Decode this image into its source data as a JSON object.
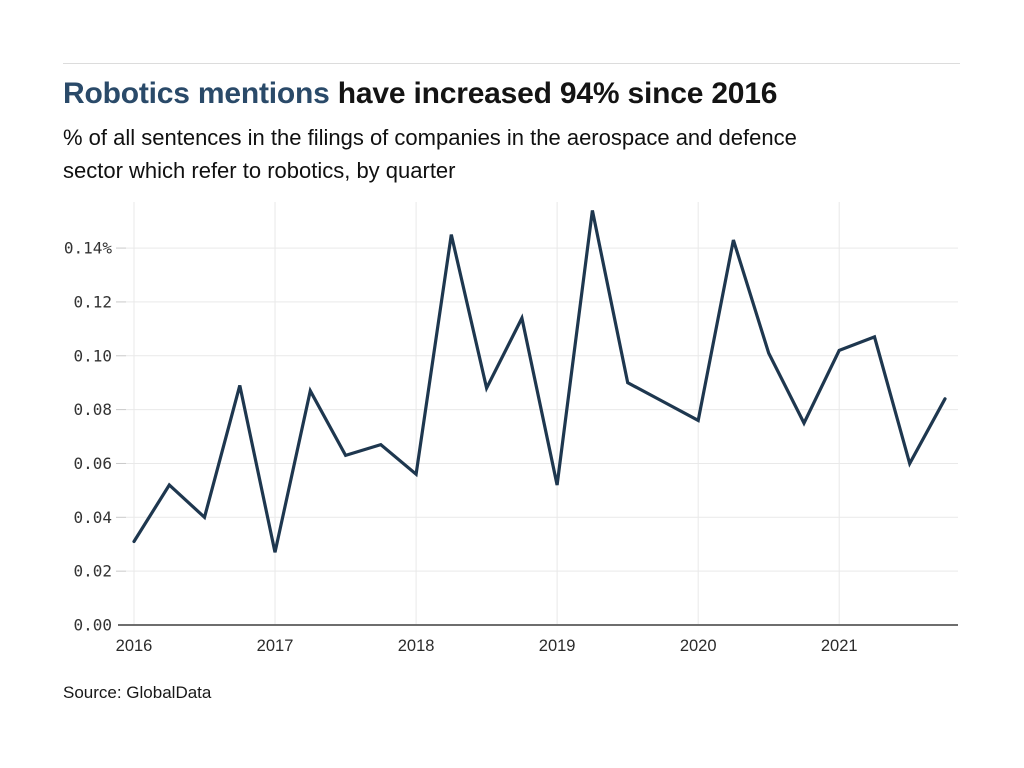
{
  "header": {
    "title_accent": "Robotics mentions",
    "title_rest": " have increased 94% since 2016",
    "subtitle": "% of all sentences in the filings of companies in the aerospace and defence sector which refer to robotics, by quarter",
    "subtitle_lines": [
      "% of all sentences in the filings of companies in the aerospace and defence",
      "sector which refer to robotics, by quarter"
    ]
  },
  "footer": {
    "source": "Source: GlobalData"
  },
  "colors": {
    "title_accent": "#2a4a69",
    "line": "#1e374f",
    "grid": "#e9e9e9",
    "axis": "#6e6e6e",
    "tick": "#c9c9c9",
    "axis_label": "#333333",
    "rule": "#dcdcdc"
  },
  "chart_data": {
    "type": "line",
    "title": "Robotics mentions have increased 94% since 2016",
    "subtitle": "% of all sentences in the filings of companies in the aerospace and defence sector which refer to robotics, by quarter",
    "unit": "% of all sentences",
    "grid": true,
    "legend_position": "none",
    "x": [
      "2016 Q1",
      "2016 Q2",
      "2016 Q3",
      "2016 Q4",
      "2017 Q1",
      "2017 Q2",
      "2017 Q3",
      "2017 Q4",
      "2018 Q1",
      "2018 Q2",
      "2018 Q3",
      "2018 Q4",
      "2019 Q1",
      "2019 Q2",
      "2019 Q3",
      "2019 Q4",
      "2020 Q1",
      "2020 Q2",
      "2020 Q3",
      "2020 Q4",
      "2021 Q1",
      "2021 Q2",
      "2021 Q3",
      "2021 Q4"
    ],
    "series": [
      {
        "name": "Robotics mentions (% of sentences)",
        "color": "#1e374f",
        "values": [
          0.031,
          0.052,
          0.04,
          0.089,
          0.027,
          0.087,
          0.063,
          0.067,
          0.056,
          0.145,
          0.088,
          0.114,
          0.052,
          0.154,
          0.09,
          0.083,
          0.076,
          0.143,
          0.101,
          0.075,
          0.102,
          0.107,
          0.06,
          0.084
        ]
      }
    ],
    "xlabel": "",
    "ylabel": "",
    "ylim": [
      0,
      0.156
    ],
    "y_axis": {
      "tick_values": [
        0.0,
        0.02,
        0.04,
        0.06,
        0.08,
        0.1,
        0.12,
        0.14
      ],
      "tick_labels": [
        "0.00",
        "0.02",
        "0.04",
        "0.06",
        "0.08",
        "0.10",
        "0.12",
        "0.14%"
      ]
    },
    "x_axis": {
      "tick_indices": [
        0,
        4,
        8,
        12,
        16,
        20
      ],
      "tick_labels": [
        "2016",
        "2017",
        "2018",
        "2019",
        "2020",
        "2021"
      ]
    },
    "source": "Source: GlobalData"
  }
}
